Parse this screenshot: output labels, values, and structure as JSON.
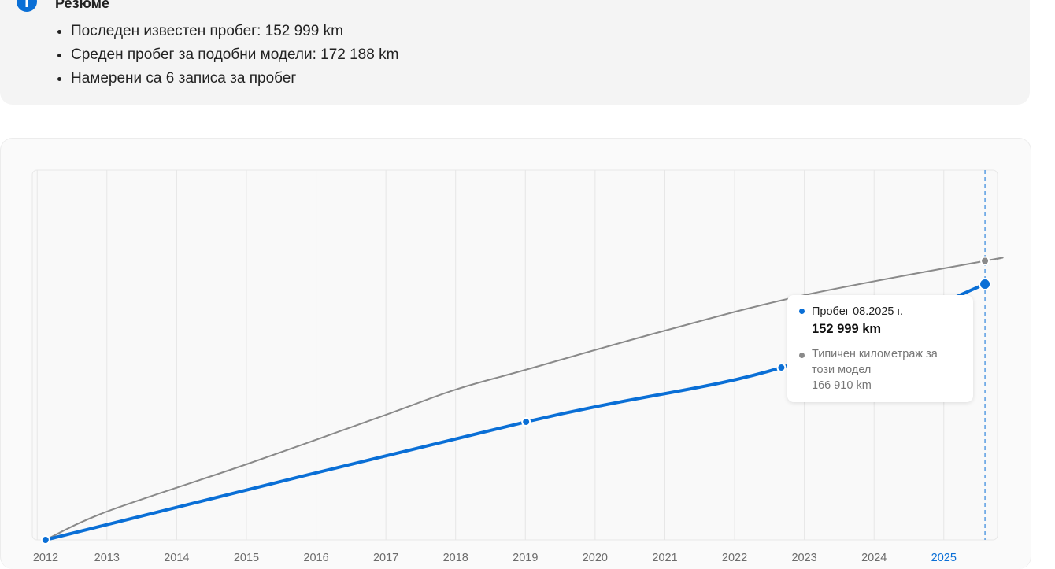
{
  "summary": {
    "title": "Резюме",
    "items": [
      "Последен известен пробег: 152 999 km",
      "Среден пробег за подобни модели: 172 188 km",
      "Намерени са 6 записа за пробег"
    ]
  },
  "chart_data": {
    "type": "line",
    "xlim": [
      2011.93,
      2025.77
    ],
    "xticks": [
      2012,
      2013,
      2014,
      2015,
      2016,
      2017,
      2018,
      2019,
      2020,
      2021,
      2022,
      2023,
      2024,
      2025
    ],
    "ylim": [
      0,
      221300
    ],
    "grid": true,
    "cursor_x": 2025.59,
    "cursor_color": "#0a6fd6",
    "series": [
      {
        "color": "#8a8a8a",
        "x": [
          2012.12,
          2013,
          2015,
          2017,
          2018,
          2019,
          2021,
          2023,
          2025.59,
          2025.77
        ],
        "values": [
          0,
          16950,
          45200,
          74860,
          89900,
          101700,
          125200,
          146400,
          166910,
          168100
        ]
      },
      {
        "color": "#0a6fd6",
        "x": [
          2012.12,
          2019.01,
          2022.67,
          2025.59
        ],
        "values": [
          0,
          70620,
          103100,
          152999
        ]
      }
    ]
  },
  "tooltip": {
    "title": "Пробег 08.2025 г.",
    "value": "152 999 km",
    "typical_label": "Типичен километраж за този модел",
    "typical_value": "166 910 km"
  }
}
